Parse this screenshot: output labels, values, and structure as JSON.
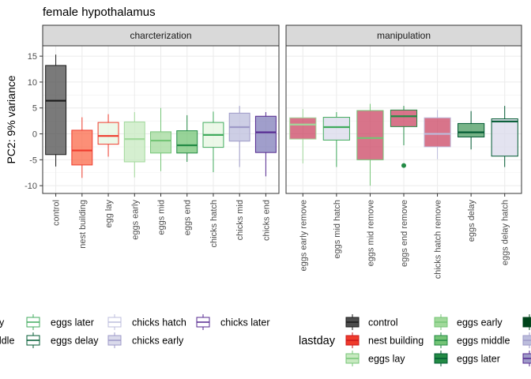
{
  "chart_data": {
    "type": "boxplot",
    "title": "female hypothalamus",
    "ylabel": "PC2: 9% variance",
    "xlabel": "",
    "ylim": [
      -11.5,
      17
    ],
    "yticks": [
      -10,
      -5,
      0,
      5,
      10,
      15
    ],
    "grid": true,
    "panels": [
      {
        "strip": "charcterization",
        "categories": [
          "control",
          "nest building",
          "egg lay",
          "eggs early",
          "eggs mid",
          "eggs end",
          "chicks hatch",
          "chicks mid",
          "chicks end"
        ],
        "boxes": [
          {
            "name": "control",
            "whisker_low": -6.3,
            "q1": -4.0,
            "median": 6.4,
            "q3": 13.2,
            "whisker_high": 15.3,
            "fill": "#4d4d4d",
            "line": "#1a1a1a"
          },
          {
            "name": "nest building",
            "whisker_low": -8.5,
            "q1": -6.0,
            "median": -3.2,
            "q3": 0.7,
            "whisker_high": 3.2,
            "fill": "#fb6a4a",
            "line": "#ef3b2c"
          },
          {
            "name": "egg lay",
            "whisker_low": -4.4,
            "q1": -2.0,
            "median": -0.4,
            "q3": 2.2,
            "whisker_high": 3.8,
            "fill": "#e5f5e0",
            "line": "#ef3b2c"
          },
          {
            "name": "eggs early",
            "whisker_low": -8.4,
            "q1": -5.4,
            "median": -1.0,
            "q3": 2.3,
            "whisker_high": 4.2,
            "fill": "#c7e9c0",
            "line": "#a1d99b"
          },
          {
            "name": "eggs mid",
            "whisker_low": -7.2,
            "q1": -3.7,
            "median": -1.3,
            "q3": 0.4,
            "whisker_high": 5.0,
            "fill": "#a1d99b",
            "line": "#74c476"
          },
          {
            "name": "eggs end",
            "whisker_low": -5.4,
            "q1": -3.7,
            "median": -2.2,
            "q3": 0.6,
            "whisker_high": 3.6,
            "fill": "#74c476",
            "line": "#238b45"
          },
          {
            "name": "chicks hatch",
            "whisker_low": -7.4,
            "q1": -2.6,
            "median": -0.2,
            "q3": 2.2,
            "whisker_high": 4.3,
            "fill": "#e5f5e0",
            "line": "#41ab5d"
          },
          {
            "name": "chicks mid",
            "whisker_low": -6.4,
            "q1": -1.4,
            "median": 1.3,
            "q3": 4.0,
            "whisker_high": 5.4,
            "fill": "#bcbddc",
            "line": "#9e9ac8"
          },
          {
            "name": "chicks end",
            "whisker_low": -8.2,
            "q1": -3.6,
            "median": 0.3,
            "q3": 3.4,
            "whisker_high": 4.2,
            "fill": "#807dba",
            "line": "#54278f"
          }
        ]
      },
      {
        "strip": "manipulation",
        "categories": [
          "eggs early remove",
          "eggs mid hatch",
          "eggs mid remove",
          "eggs end remove",
          "chicks hatch remove",
          "eggs delay",
          "eggs delay hatch"
        ],
        "boxes": [
          {
            "name": "eggs early remove",
            "whisker_low": -5.7,
            "q1": -1.0,
            "median": 1.8,
            "q3": 3.1,
            "whisker_high": 4.8,
            "fill": "#cb4563",
            "line": "#a1d99b"
          },
          {
            "name": "eggs mid hatch",
            "whisker_low": -6.4,
            "q1": -1.2,
            "median": 1.3,
            "q3": 3.2,
            "whisker_high": 4.2,
            "fill": "#dadaeb",
            "line": "#41ab5d"
          },
          {
            "name": "eggs mid remove",
            "whisker_low": -10.0,
            "q1": -5.0,
            "median": -0.8,
            "q3": 4.5,
            "whisker_high": 5.8,
            "fill": "#cb4563",
            "line": "#74c476"
          },
          {
            "name": "eggs end remove",
            "whisker_low": -2.2,
            "q1": 1.4,
            "median": 3.4,
            "q3": 4.6,
            "whisker_high": 5.4,
            "fill": "#cb4563",
            "line": "#238b45",
            "outliers": [
              -6.1
            ]
          },
          {
            "name": "chicks hatch remove",
            "whisker_low": -4.9,
            "q1": -2.5,
            "median": 0.0,
            "q3": 3.1,
            "whisker_high": 4.6,
            "fill": "#cb4563",
            "line": "#bcbddc"
          },
          {
            "name": "eggs delay",
            "whisker_low": -3.0,
            "q1": -0.6,
            "median": 0.3,
            "q3": 2.0,
            "whisker_high": 4.4,
            "fill": "#4a9a5f",
            "line": "#005a32"
          },
          {
            "name": "eggs delay hatch",
            "whisker_low": -6.4,
            "q1": -4.3,
            "median": 2.4,
            "q3": 2.9,
            "whisker_high": 5.4,
            "fill": "#dadaeb",
            "line": "#005a32"
          }
        ]
      }
    ],
    "legends": [
      {
        "title": "",
        "entries": [
          {
            "label": "rly",
            "fill": "#ffffff",
            "line": "#74c476"
          },
          {
            "label": "iddle",
            "fill": "#ffffff",
            "line": "#41ab5d"
          },
          {
            "label": "eggs later",
            "fill": "#ffffff",
            "line": "#41ab5d"
          },
          {
            "label": "eggs delay",
            "fill": "#ffffff",
            "line": "#005a32"
          },
          {
            "label": "chicks hatch",
            "fill": "#ffffff",
            "line": "#bcbddc"
          },
          {
            "label": "chicks early",
            "fill": "#dadaeb",
            "line": "#9e9ac8"
          },
          {
            "label": "chicks later",
            "fill": "#ffffff",
            "line": "#54278f"
          }
        ]
      },
      {
        "title": "lastday",
        "entries": [
          {
            "label": "control",
            "fill": "#4d4d4d",
            "line": "#1a1a1a"
          },
          {
            "label": "nest building",
            "fill": "#ef3b2c",
            "line": "#cb181d"
          },
          {
            "label": "eggs lay",
            "fill": "#c7e9c0",
            "line": "#74c476"
          },
          {
            "label": "eggs early",
            "fill": "#a1d99b",
            "line": "#74c476"
          },
          {
            "label": "eggs middle",
            "fill": "#74c476",
            "line": "#238b45"
          },
          {
            "label": "eggs later",
            "fill": "#238b45",
            "line": "#005a32"
          },
          {
            "label": "",
            "fill": "#00441b",
            "line": "#00441b"
          },
          {
            "label": "",
            "fill": "#bcbddc",
            "line": "#9e9ac8"
          },
          {
            "label": "",
            "fill": "#9e9ac8",
            "line": "#54278f"
          }
        ]
      }
    ]
  }
}
